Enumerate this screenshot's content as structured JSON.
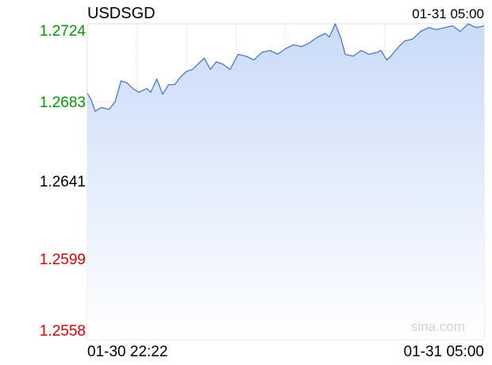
{
  "header": {
    "symbol": "USDSGD",
    "timestamp": "01-31 05:00"
  },
  "watermark": "sina.com",
  "colors": {
    "up": "#009900",
    "down": "#dd0000",
    "neutral": "#000000",
    "line": "#3d6fcf",
    "fill_top": "#c9dbf8",
    "fill_bottom": "#ffffff",
    "grid": "#e2e2e2",
    "base_line": "#9fb6d9"
  },
  "chart_data": {
    "type": "area",
    "title": "USDSGD",
    "xlabel": "",
    "ylabel": "",
    "x_range": [
      "01-30 22:22",
      "01-31 05:00"
    ],
    "x_tick_labels": [
      "01-30 22:22",
      "01-31 05:00"
    ],
    "ylim": [
      1.2558,
      1.2724
    ],
    "y_tick_labels": [
      "1.2724",
      "1.2683",
      "1.2641",
      "1.2599",
      "1.2558"
    ],
    "reference_level": "1.2641",
    "grid": true,
    "series": [
      {
        "values": [
          [
            0.0,
            1.26875
          ],
          [
            0.01,
            1.2684
          ],
          [
            0.02,
            1.2678
          ],
          [
            0.035,
            1.268
          ],
          [
            0.055,
            1.2679
          ],
          [
            0.07,
            1.2683
          ],
          [
            0.085,
            1.2694
          ],
          [
            0.1,
            1.2693
          ],
          [
            0.115,
            1.269
          ],
          [
            0.13,
            1.2688
          ],
          [
            0.15,
            1.269
          ],
          [
            0.16,
            1.2688
          ],
          [
            0.175,
            1.2695
          ],
          [
            0.19,
            1.2687
          ],
          [
            0.205,
            1.2692
          ],
          [
            0.22,
            1.2692
          ],
          [
            0.235,
            1.2696
          ],
          [
            0.25,
            1.2699
          ],
          [
            0.265,
            1.27
          ],
          [
            0.28,
            1.2703
          ],
          [
            0.295,
            1.2706
          ],
          [
            0.31,
            1.27
          ],
          [
            0.325,
            1.2704
          ],
          [
            0.34,
            1.2703
          ],
          [
            0.36,
            1.27
          ],
          [
            0.38,
            1.2708
          ],
          [
            0.4,
            1.2707
          ],
          [
            0.42,
            1.2705
          ],
          [
            0.44,
            1.2709
          ],
          [
            0.46,
            1.271
          ],
          [
            0.48,
            1.2708
          ],
          [
            0.5,
            1.2711
          ],
          [
            0.52,
            1.2713
          ],
          [
            0.54,
            1.2712
          ],
          [
            0.56,
            1.2714
          ],
          [
            0.58,
            1.2717
          ],
          [
            0.6,
            1.2719
          ],
          [
            0.61,
            1.2717
          ],
          [
            0.625,
            1.2724
          ],
          [
            0.64,
            1.2716
          ],
          [
            0.65,
            1.2708
          ],
          [
            0.67,
            1.2707
          ],
          [
            0.69,
            1.271
          ],
          [
            0.71,
            1.2708
          ],
          [
            0.73,
            1.2709
          ],
          [
            0.74,
            1.271
          ],
          [
            0.755,
            1.2705
          ],
          [
            0.765,
            1.2707
          ],
          [
            0.785,
            1.2712
          ],
          [
            0.8,
            1.2715
          ],
          [
            0.82,
            1.2716
          ],
          [
            0.84,
            1.272
          ],
          [
            0.86,
            1.2722
          ],
          [
            0.88,
            1.2721
          ],
          [
            0.9,
            1.2722
          ],
          [
            0.92,
            1.2723
          ],
          [
            0.94,
            1.272
          ],
          [
            0.96,
            1.2724
          ],
          [
            0.98,
            1.2722
          ],
          [
            1.0,
            1.2723
          ]
        ]
      }
    ]
  }
}
